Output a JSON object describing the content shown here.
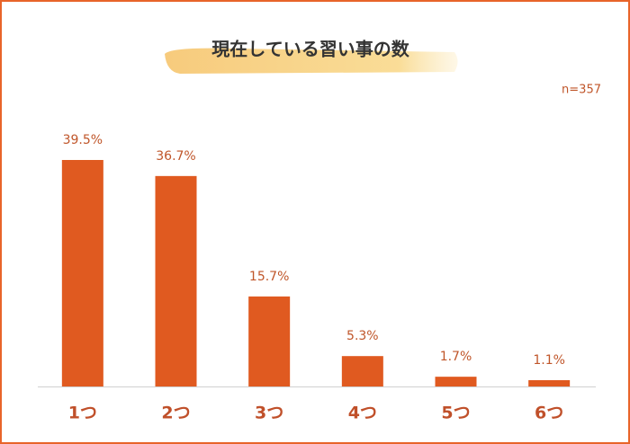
{
  "chart_data": {
    "type": "bar",
    "title": "現在している習い事の数",
    "annotation": "n=357",
    "categories": [
      "1つ",
      "2つ",
      "3つ",
      "4つ",
      "5つ",
      "6つ"
    ],
    "values": [
      39.5,
      36.7,
      15.7,
      5.3,
      1.7,
      1.1
    ],
    "value_labels": [
      "39.5%",
      "36.7%",
      "15.7%",
      "5.3%",
      "1.7%",
      "1.1%"
    ],
    "color": "#e05a20"
  }
}
